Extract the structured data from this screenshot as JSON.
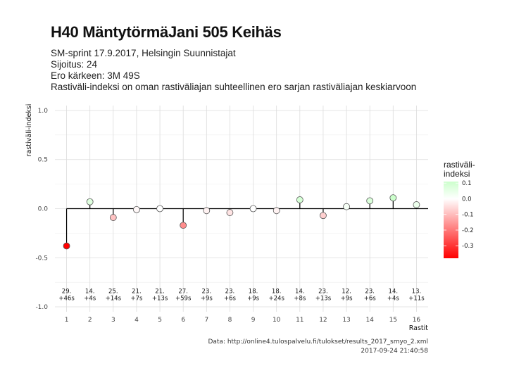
{
  "title": "H40 MäntytörmäJani 505 Keihäs",
  "subtitle_lines": [
    "SM-sprint 17.9.2017, Helsingin Suunnistajat",
    "Sijoitus: 24",
    "Ero kärkeen: 3M 49S",
    "Rastiväli-indeksi on oman rastiväliajan suhteellinen ero sarjan rastiväliajan keskiarvoon"
  ],
  "caption_lines": [
    "Data: http://online4.tulospalvelu.fi/tulokset/results_2017_smyo_2.xml",
    "2017-09-24 21:40:58"
  ],
  "chart_data": {
    "type": "lollipop",
    "xlabel": "Rastit",
    "ylabel": "rastiväli-indeksi",
    "ylim": [
      -1.05,
      1.05
    ],
    "yticks": [
      -1.0,
      -0.5,
      0.0,
      0.5,
      1.0
    ],
    "ytick_labels": [
      "-1.0",
      "-0.5",
      "0.0",
      "0.5",
      "1.0"
    ],
    "x": [
      1,
      2,
      3,
      4,
      5,
      6,
      7,
      8,
      9,
      10,
      11,
      12,
      13,
      14,
      15,
      16
    ],
    "values": [
      -0.38,
      0.07,
      -0.09,
      -0.01,
      0.0,
      -0.17,
      -0.02,
      -0.04,
      0.0,
      -0.02,
      0.09,
      -0.07,
      0.02,
      0.08,
      0.11,
      0.04
    ],
    "rank_labels": [
      "29.",
      "14.",
      "25.",
      "21.",
      "21.",
      "27.",
      "23.",
      "23.",
      "18.",
      "18.",
      "14.",
      "23.",
      "12.",
      "23.",
      "14.",
      "13."
    ],
    "diff_labels": [
      "+46s",
      "+4s",
      "+14s",
      "+7s",
      "+13s",
      "+59s",
      "+9s",
      "+6s",
      "+9s",
      "+24s",
      "+8s",
      "+13s",
      "+9s",
      "+6s",
      "+4s",
      "+11s"
    ],
    "grid": true,
    "legend": {
      "title_lines": [
        "rastiväli-",
        "indeksi"
      ],
      "position": "right",
      "ticks": [
        0.1,
        0.0,
        -0.1,
        -0.2,
        -0.3
      ],
      "tick_labels": [
        "0.1",
        "0.0",
        "-0.1",
        "-0.2",
        "-0.3"
      ],
      "range": [
        -0.38,
        0.11
      ],
      "colors": {
        "low": "#ff0000",
        "mid": "#ffffff",
        "high": "#ccffcc"
      }
    }
  }
}
